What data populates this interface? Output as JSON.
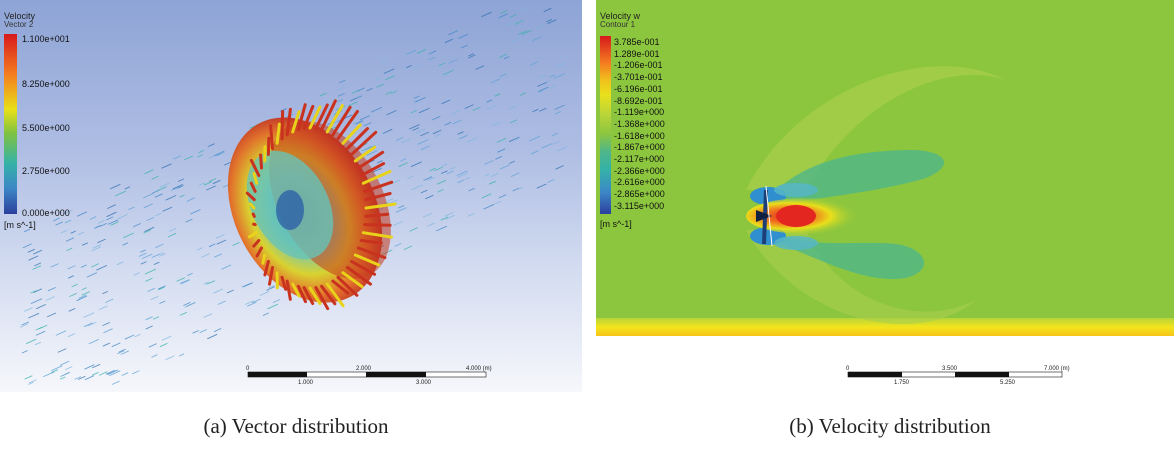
{
  "panel_a": {
    "legend_title": "Velocity",
    "legend_subtitle": "Vector 2",
    "legend_labels": [
      "1.100e+001",
      "8.250e+000",
      "5.500e+000",
      "2.750e+000",
      "0.000e+000"
    ],
    "units": "[m s^-1]",
    "scale_top": [
      "0",
      "2.000",
      "4.000 (m)"
    ],
    "scale_bottom": [
      "1.000",
      "3.000"
    ],
    "caption": "(a) Vector distribution"
  },
  "panel_b": {
    "legend_title": "Velocity w",
    "legend_subtitle": "Contour 1",
    "legend_labels": [
      "3.785e-001",
      "1.289e-001",
      "-1.206e-001",
      "-3.701e-001",
      "-6.196e-001",
      "-8.692e-001",
      "-1.119e+000",
      "-1.368e+000",
      "-1.618e+000",
      "-1.867e+000",
      "-2.117e+000",
      "-2.366e+000",
      "-2.616e+000",
      "-2.865e+000",
      "-3.115e+000"
    ],
    "units": "[m s^-1]",
    "scale_top": [
      "0",
      "3.500",
      "7.000 (m)"
    ],
    "scale_bottom": [
      "1.750",
      "5.250"
    ],
    "caption": "(b) Velocity distribution"
  },
  "colors": {
    "contour_background": "#8cc63f",
    "jet_core": "#e3261f",
    "wake_blue": "#2f8fcf"
  }
}
